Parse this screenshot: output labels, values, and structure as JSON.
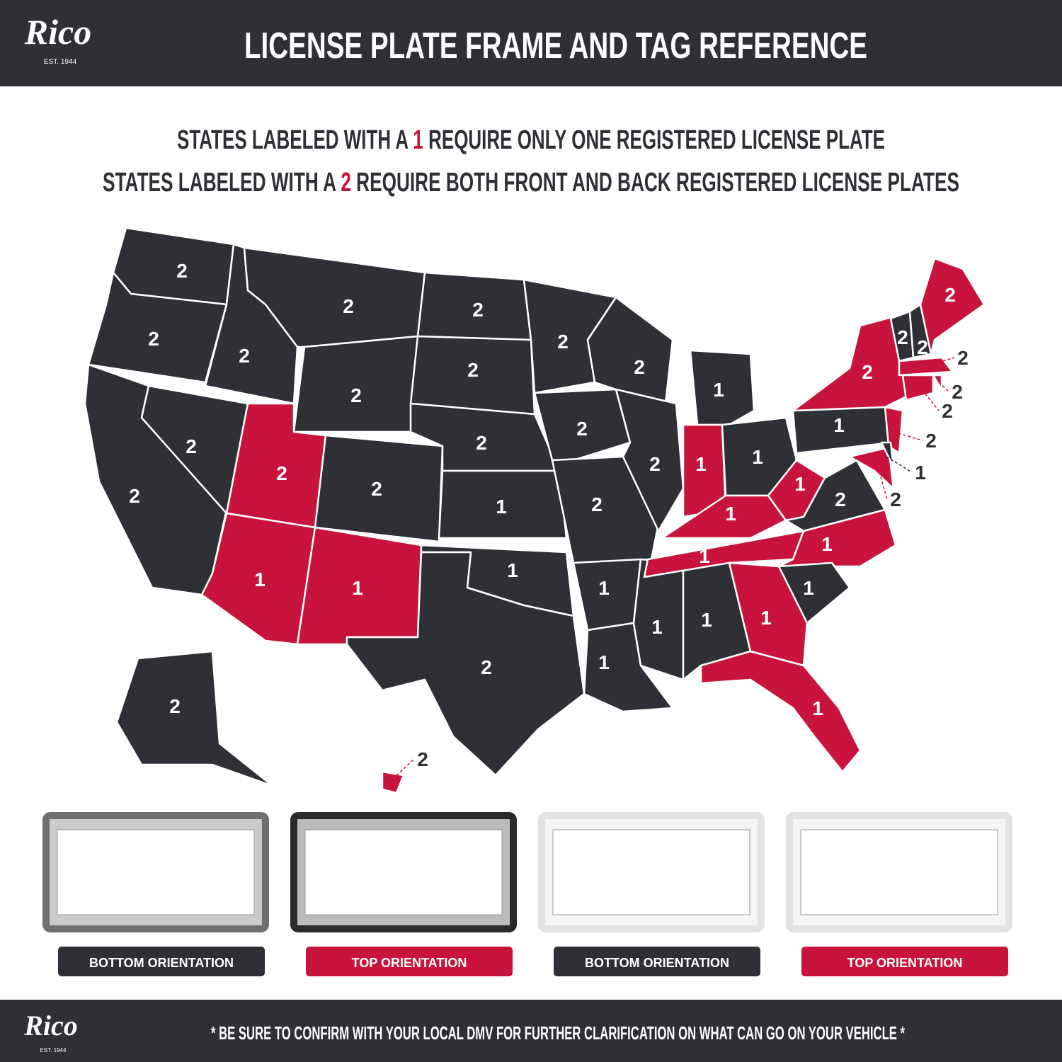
{
  "header": {
    "logo": "Rico",
    "logo_sub": "EST. 1944",
    "title": "LICENSE PLATE FRAME AND TAG REFERENCE"
  },
  "legend": [
    [
      "STATES LABELED WITH A ",
      "1",
      " REQUIRE ONLY ONE REGISTERED LICENSE PLATE"
    ],
    [
      "STATES LABELED WITH A ",
      "2",
      " REQUIRE BOTH FRONT AND BACK REGISTERED LICENSE PLATES"
    ]
  ],
  "colors": {
    "dark": "#2e3036",
    "red": "#c8143c"
  },
  "map": {
    "states": [
      {
        "label": "2",
        "color": "dark"
      },
      {
        "label": "2",
        "color": "dark"
      },
      {
        "label": "2",
        "color": "dark"
      },
      {
        "label": "2",
        "color": "dark"
      },
      {
        "label": "2",
        "color": "dark"
      },
      {
        "label": "2",
        "color": "dark"
      },
      {
        "label": "2",
        "color": "dark"
      },
      {
        "label": "2",
        "color": "red"
      },
      {
        "label": "1",
        "color": "red"
      },
      {
        "label": "2",
        "color": "dark"
      },
      {
        "label": "1",
        "color": "red"
      },
      {
        "label": "2",
        "color": "dark"
      },
      {
        "label": "2",
        "color": "dark"
      },
      {
        "label": "2",
        "color": "dark"
      },
      {
        "label": "1",
        "color": "dark"
      },
      {
        "label": "1",
        "color": "dark"
      },
      {
        "label": "2",
        "color": "dark"
      },
      {
        "label": "2",
        "color": "dark"
      },
      {
        "label": "2",
        "color": "dark"
      },
      {
        "label": "2",
        "color": "dark"
      },
      {
        "label": "1",
        "color": "dark"
      },
      {
        "label": "1",
        "color": "dark"
      },
      {
        "label": "2",
        "color": "dark"
      },
      {
        "label": "2",
        "color": "dark"
      },
      {
        "label": "1",
        "color": "dark"
      },
      {
        "label": "1",
        "color": "dark"
      },
      {
        "label": "1",
        "color": "dark"
      },
      {
        "label": "1",
        "color": "red"
      },
      {
        "label": "1",
        "color": "dark"
      },
      {
        "label": "1",
        "color": "red"
      },
      {
        "label": "1",
        "color": "red"
      },
      {
        "label": "1",
        "color": "red"
      },
      {
        "label": "2",
        "color": "dark"
      },
      {
        "label": "1",
        "color": "red"
      },
      {
        "label": "1",
        "color": "dark"
      },
      {
        "label": "1",
        "color": "red"
      },
      {
        "label": "1",
        "color": "red"
      },
      {
        "label": "1",
        "color": "dark"
      },
      {
        "label": "2",
        "color": "red"
      },
      {
        "label": "2",
        "color": "red"
      },
      {
        "label": "2",
        "color": "red"
      },
      {
        "label": "1",
        "color": "dark"
      },
      {
        "label": "2",
        "color": "dark"
      },
      {
        "label": "2",
        "color": "dark"
      },
      {
        "label": "2",
        "color": "red"
      },
      {
        "label": "2",
        "color": "red"
      },
      {
        "label": "2",
        "color": "red"
      },
      {
        "label": "2",
        "color": "red"
      },
      {
        "label": "2",
        "color": "dark"
      },
      {
        "label": "2",
        "color": "red"
      }
    ]
  },
  "frames": [
    {
      "label": "BOTTOM ORIENTATION",
      "color": "dark"
    },
    {
      "label": "TOP ORIENTATION",
      "color": "red"
    },
    {
      "label": "BOTTOM ORIENTATION",
      "color": "dark"
    },
    {
      "label": "TOP ORIENTATION",
      "color": "red"
    }
  ],
  "footer": {
    "logo": "Rico",
    "logo_sub": "EST. 1944",
    "note": "* BE SURE TO CONFIRM WITH YOUR LOCAL DMV FOR FURTHER CLARIFICATION ON WHAT CAN GO ON YOUR VEHICLE *"
  }
}
